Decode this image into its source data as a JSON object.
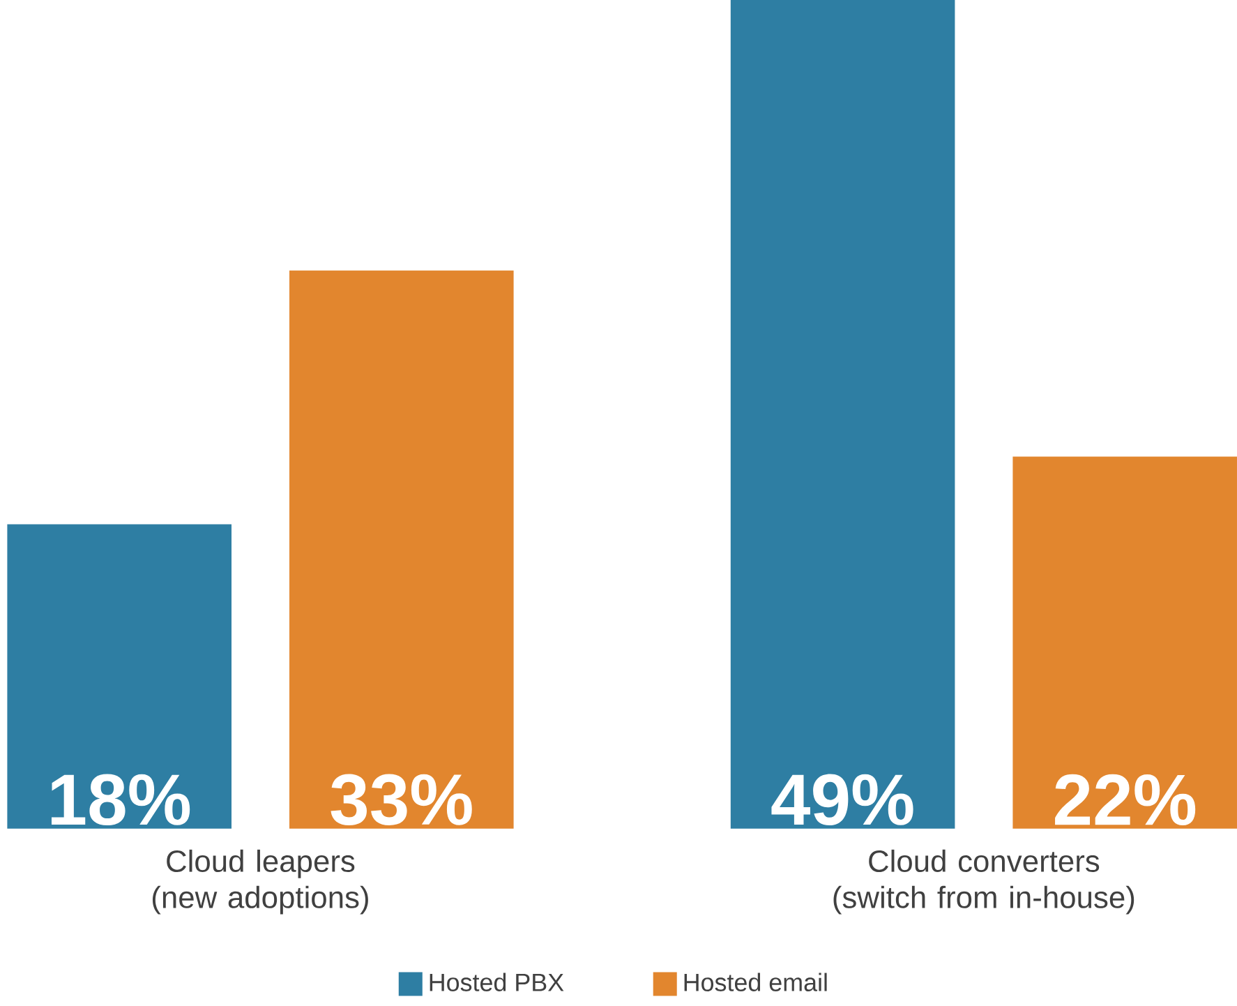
{
  "chart_data": {
    "type": "bar",
    "categories": [
      "Cloud leapers (new adoptions)",
      "Cloud converters (switch from in-house)"
    ],
    "series": [
      {
        "name": "Hosted PBX",
        "color": "#2e7ea3",
        "values": [
          18,
          49
        ],
        "value_labels": [
          "18%",
          "49%"
        ]
      },
      {
        "name": "Hosted email",
        "color": "#e2862e",
        "values": [
          33,
          22
        ],
        "value_labels": [
          "33%",
          "22%"
        ]
      }
    ],
    "legend": "bottom"
  }
}
